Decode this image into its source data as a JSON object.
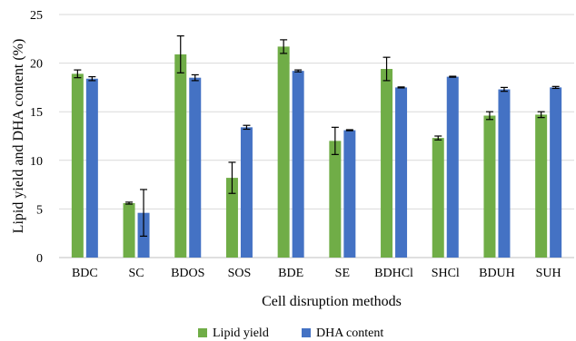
{
  "chart_data": {
    "type": "bar",
    "title": "",
    "xlabel": "Cell disruption methods",
    "ylabel": "Lipid yield and DHA content (%)",
    "ylim": [
      0,
      25
    ],
    "yticks": [
      0,
      5,
      10,
      15,
      20,
      25
    ],
    "grid": "horizontal",
    "legend_position": "bottom",
    "categories": [
      "BDC",
      "SC",
      "BDOS",
      "SOS",
      "BDE",
      "SE",
      "BDHCl",
      "SHCl",
      "BDUH",
      "SUH"
    ],
    "series": [
      {
        "name": "Lipid yield",
        "color": "#70AD47",
        "values": [
          18.9,
          5.6,
          20.9,
          8.2,
          21.7,
          12.0,
          19.4,
          12.3,
          14.6,
          14.7
        ],
        "errors": [
          0.4,
          0.1,
          1.9,
          1.6,
          0.7,
          1.4,
          1.2,
          0.2,
          0.4,
          0.3
        ]
      },
      {
        "name": "DHA content",
        "color": "#4472C4",
        "values": [
          18.4,
          4.6,
          18.5,
          13.4,
          19.2,
          13.1,
          17.5,
          18.6,
          17.3,
          17.5
        ],
        "errors": [
          0.2,
          2.4,
          0.3,
          0.2,
          0.1,
          0.05,
          0.05,
          0.05,
          0.2,
          0.1
        ]
      }
    ]
  }
}
